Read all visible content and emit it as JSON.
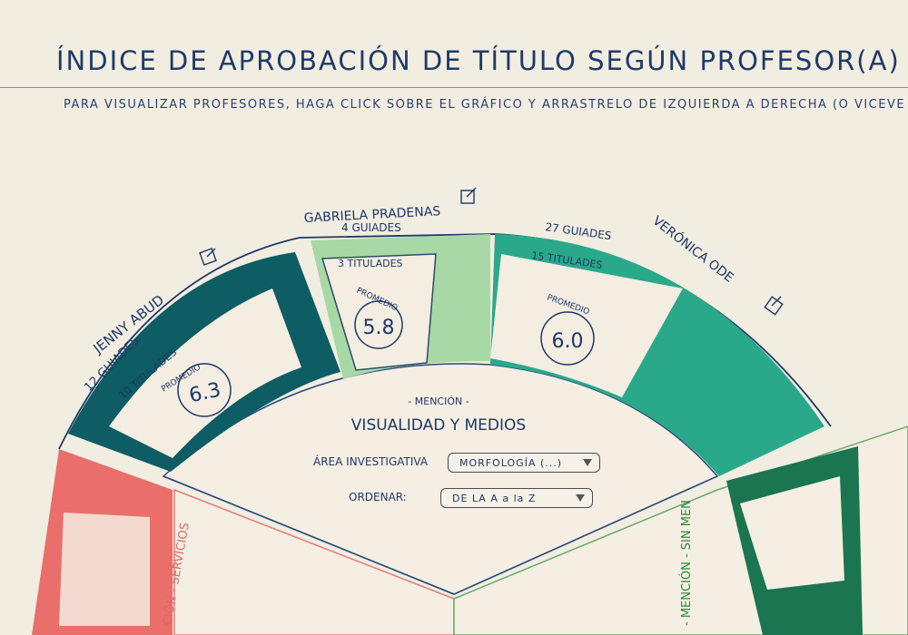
{
  "header": {
    "title": "ÍNDICE DE APROBACIÓN DE TÍTULO SEGÚN PROFESOR(A)",
    "subtitle": "PARA VISUALIZAR PROFESORES, HAGA CLICK SOBRE EL GRÁFICO Y ARRASTRELO DE IZQUIERDA A DERECHA (O VICEVE"
  },
  "professors": [
    {
      "name": "JENNY ABUD",
      "guided": "12 GUIADES",
      "titled": "10 TITULADES",
      "avg_label": "PROMEDIO",
      "avg": "6.3",
      "color": "#0e5c64"
    },
    {
      "name": "GABRIELA PRADENAS",
      "guided": "4 GUIADES",
      "titled": "3 TITULADES",
      "avg_label": "PROMEDIO",
      "avg": "5.8",
      "color": "#a8d8a5"
    },
    {
      "name": "VERÓNICA ODE",
      "guided": "27 GUIADES",
      "titled": "15 TITULADES",
      "avg_label": "PROMEDIO",
      "avg": "6.0",
      "color": "#2aa98a"
    }
  ],
  "center": {
    "mention_label": "- MENCIÓN -",
    "mention": "VISUALIDAD Y MEDIOS",
    "area_label": "ÁREA INVESTIGATIVA",
    "area_value": "MORFOLOGÍA (...)",
    "order_label": "ORDENAR:",
    "order_value": "DE LA A a la Z"
  },
  "side_sections": {
    "left_text": "CIÓN - SERVICIOS",
    "left_color": "#ea6f6a",
    "right_text": "- MENCIÓN - SIN MEN",
    "right_color": "#1a7550"
  }
}
